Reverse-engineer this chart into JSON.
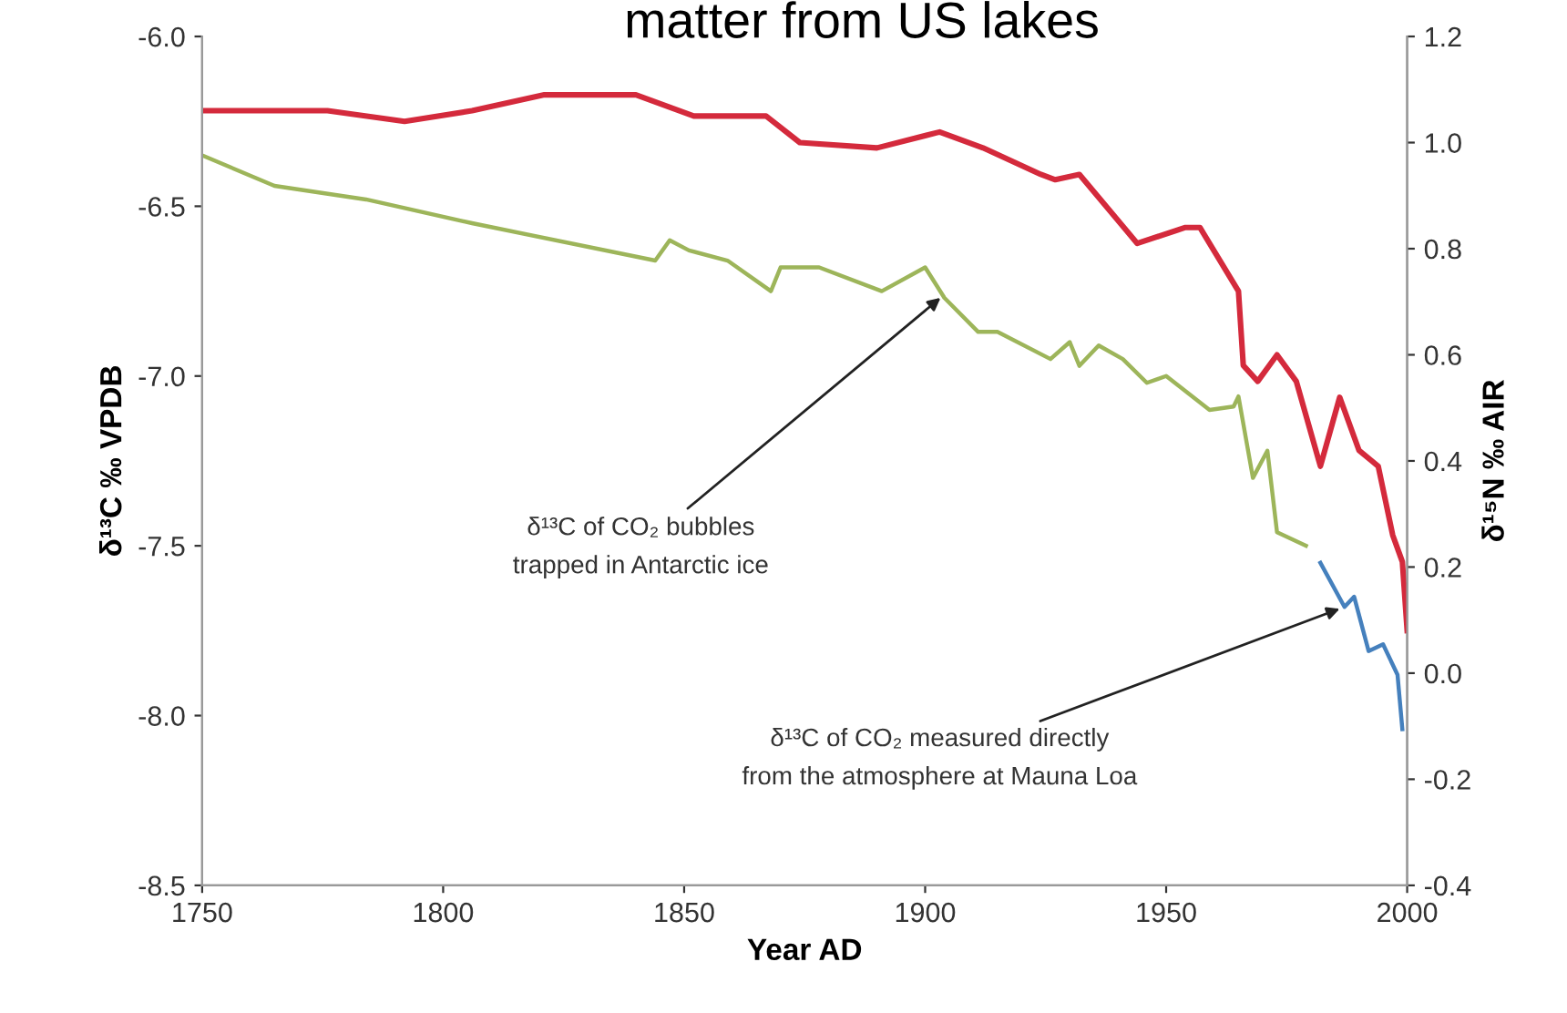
{
  "chart_data": {
    "type": "line",
    "title": "matter from US lakes",
    "xlabel": "Year AD",
    "ylabel": "δ¹³C ‰ VPDB",
    "y2label": "δ¹⁵N ‰ AIR",
    "series": [
      {
        "color": "#d42a3c",
        "axis": "y2",
        "x": [
          1750,
          1776,
          1792,
          1806,
          1821,
          1840,
          1852,
          1867,
          1874,
          1890,
          1903,
          1912,
          1924,
          1927,
          1932,
          1944,
          1954,
          1957,
          1965,
          1966,
          1969,
          1973,
          1977,
          1982,
          1986,
          1990,
          1994,
          1997,
          1999,
          2000
        ],
        "values": [
          1.06,
          1.06,
          1.04,
          1.06,
          1.09,
          1.09,
          1.05,
          1.05,
          1.0,
          0.99,
          1.02,
          0.99,
          0.94,
          0.93,
          0.94,
          0.81,
          0.84,
          0.84,
          0.72,
          0.58,
          0.55,
          0.6,
          0.55,
          0.39,
          0.52,
          0.42,
          0.39,
          0.26,
          0.21,
          0.08
        ]
      },
      {
        "color": "#9db55a",
        "x": [
          1750,
          1765,
          1784,
          1806,
          1844,
          1847,
          1851,
          1859,
          1868,
          1870,
          1878,
          1891,
          1900,
          1904,
          1911,
          1915,
          1926,
          1930,
          1932,
          1936,
          1941,
          1946,
          1950,
          1959,
          1964,
          1965,
          1968,
          1971,
          1973,
          1979
        ],
        "values": [
          -6.35,
          -6.44,
          -6.48,
          -6.55,
          -6.66,
          -6.6,
          -6.63,
          -6.66,
          -6.75,
          -6.68,
          -6.68,
          -6.75,
          -6.68,
          -6.77,
          -6.87,
          -6.87,
          -6.95,
          -6.9,
          -6.97,
          -6.91,
          -6.95,
          -7.02,
          -7.0,
          -7.1,
          -7.09,
          -7.06,
          -7.3,
          -7.22,
          -7.46,
          -7.5
        ]
      },
      {
        "color": "#4580bd",
        "x": [
          1982,
          1987,
          1989,
          1992,
          1995,
          1998,
          1999
        ],
        "values": [
          -7.55,
          -7.68,
          -7.65,
          -7.81,
          -7.79,
          -7.88,
          -8.04
        ]
      }
    ],
    "annotations": [
      {
        "text": "δ¹³C of CO₂ bubbles\ntrapped in Antarctic ice",
        "x": 1904,
        "y": -6.76
      },
      {
        "text": "δ¹³C of CO₂ measured directly\nfrom the atmosphere at Mauna Loa",
        "x": 1987,
        "y": -7.68
      }
    ],
    "xlim": [
      1750,
      2000
    ],
    "xticks": [
      1750,
      1800,
      1850,
      1900,
      1950,
      2000
    ],
    "ylim": [
      -8.5,
      -6.0
    ],
    "yticks": [
      {
        "value": -8.5,
        "label": "-8.5"
      },
      {
        "value": -8.0,
        "label": "-8.0"
      },
      {
        "value": -7.5,
        "label": "-7.5"
      },
      {
        "value": -7.0,
        "label": "-7.0"
      },
      {
        "value": -6.5,
        "label": "-6.5"
      },
      {
        "value": -6.0,
        "label": "-6.0"
      }
    ],
    "y2lim": [
      -0.4,
      1.2
    ],
    "y2ticks": [
      {
        "value": -0.4,
        "label": "-0.4"
      },
      {
        "value": -0.2,
        "label": "-0.2"
      },
      {
        "value": 0.0,
        "label": "0.0"
      },
      {
        "value": 0.2,
        "label": "0.2"
      },
      {
        "value": 0.4,
        "label": "0.4"
      },
      {
        "value": 0.6,
        "label": "0.6"
      },
      {
        "value": 0.8,
        "label": "0.8"
      },
      {
        "value": 1.0,
        "label": "1.0"
      },
      {
        "value": 1.2,
        "label": "1.2"
      }
    ],
    "grid": false,
    "legend": false,
    "marker": "none",
    "line_style": "solid"
  }
}
